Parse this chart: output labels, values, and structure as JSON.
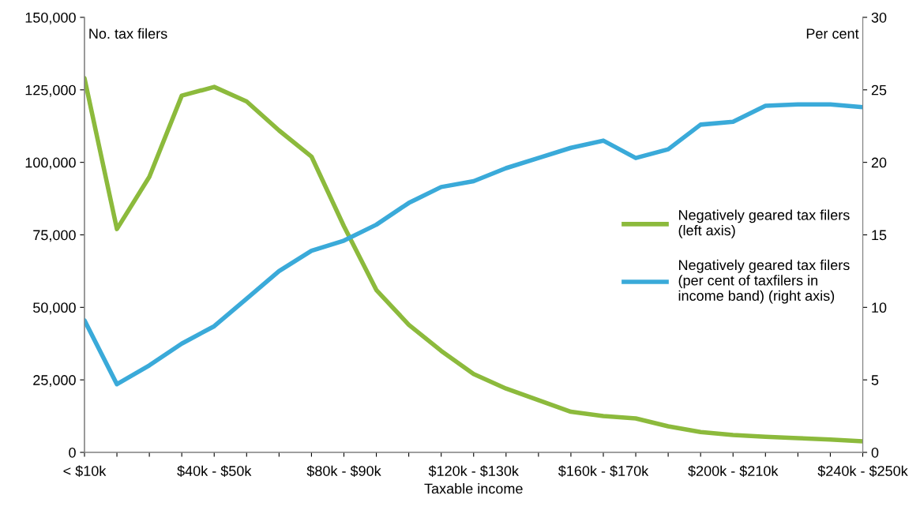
{
  "chart_data": {
    "type": "line",
    "xlabel": "Taxable income",
    "ylabel": "No. tax filers",
    "y2label": "Per cent",
    "categories": [
      "< $10k",
      null,
      null,
      null,
      "$40k - $50k",
      null,
      null,
      null,
      "$80k - $90k",
      null,
      null,
      null,
      "$120k - $130k",
      null,
      null,
      null,
      "$160k - $170k",
      null,
      null,
      null,
      "$200k - $210k",
      null,
      null,
      null,
      "$240k - $250k"
    ],
    "series": [
      {
        "name": "Negatively geared tax filers\n(left axis)",
        "color": "#8cba3c",
        "values": [
          129000,
          77000,
          95000,
          123000,
          126000,
          121000,
          111000,
          102000,
          78000,
          56000,
          44000,
          35000,
          27000,
          22000,
          18000,
          14000,
          12500,
          11700,
          9000,
          7000,
          6000,
          5400,
          4900,
          4400,
          3800
        ]
      },
      {
        "name": "Negatively geared tax filers\n(per cent of taxfilers in\nincome band) (right axis)",
        "color": "#3aaad9",
        "axis": "y2",
        "values": [
          9.1,
          4.7,
          6.0,
          7.5,
          8.7,
          10.6,
          12.5,
          13.9,
          14.6,
          15.7,
          17.2,
          18.3,
          18.7,
          19.6,
          20.3,
          21.0,
          21.5,
          20.3,
          20.9,
          22.6,
          22.8,
          23.9,
          24.0,
          24.0,
          23.8
        ]
      }
    ],
    "ylim": [
      0,
      150000
    ],
    "yticks": [
      0,
      {
        "value": 25000,
        "label": "25,000"
      },
      {
        "value": 50000,
        "label": "50,000"
      },
      {
        "value": 75000,
        "label": "75,000"
      },
      {
        "value": 100000,
        "label": "100,000"
      },
      {
        "value": 125000,
        "label": "125,000"
      },
      {
        "value": 150000,
        "label": "150,000"
      }
    ],
    "y2lim": [
      0,
      30
    ],
    "y2ticks": [
      0,
      5,
      10,
      15,
      20,
      25,
      30
    ],
    "grid": false,
    "legend": "right",
    "marker": "none",
    "line_style": "solid"
  }
}
